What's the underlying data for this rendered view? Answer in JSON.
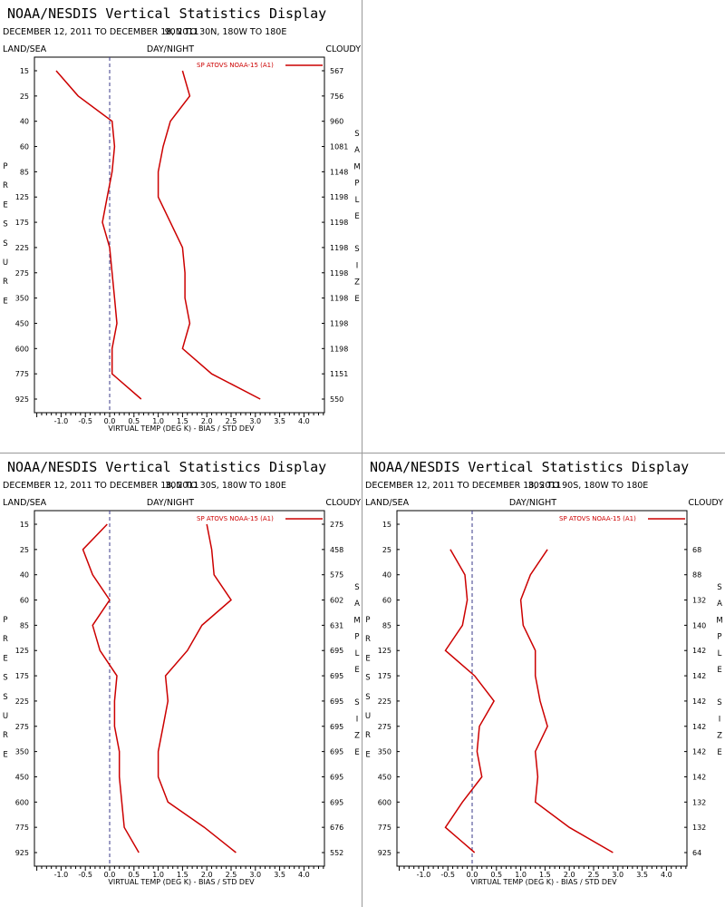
{
  "colors": {
    "bias": "#cc0000",
    "stddev": "#cc0000",
    "zero_line": "#3a3a88",
    "frame": "#000000"
  },
  "chart_data": [
    {
      "type": "line",
      "title": "NOAA/NESDIS Vertical Statistics Display",
      "date_range": "DECEMBER 12, 2011 TO DECEMBER 18, 2011",
      "region": "90N TO 30N, 180W TO 180E",
      "land_sea_label": "LAND/SEA",
      "day_night_label": "DAY/NIGHT",
      "cloudy_label": "CLOUDY",
      "ylabel": "PRESSURE",
      "y2label": "SAMPLE SIZE",
      "xlabel": "VIRTUAL TEMP (DEG K) - BIAS / STD DEV",
      "legend": "SP ATOVS NOAA-15 (A1)",
      "xlim": [
        -1.5,
        4.5
      ],
      "x_ticks": [
        "-1.0",
        "-0.5",
        "0.0",
        "0.5",
        "1.0",
        "1.5",
        "2.0",
        "2.5",
        "3.0",
        "3.5",
        "4.0"
      ],
      "pressure_levels": [
        "15",
        "25",
        "40",
        "60",
        "85",
        "125",
        "175",
        "225",
        "275",
        "350",
        "450",
        "600",
        "775",
        "925"
      ],
      "sample_size": [
        "567",
        "756",
        "960",
        "1081",
        "1148",
        "1198",
        "1198",
        "1198",
        "1198",
        "1198",
        "1198",
        "1198",
        "1151",
        "550"
      ],
      "series": [
        {
          "name": "",
          "values": [
            -1.1,
            -0.65,
            0.05,
            0.1,
            0.05,
            -0.05,
            -0.15,
            0.0,
            0.05,
            0.1,
            0.15,
            0.05,
            0.05,
            0.65
          ]
        },
        {
          "name": "",
          "values": [
            1.5,
            1.65,
            1.25,
            1.1,
            1.0,
            1.0,
            1.25,
            1.5,
            1.55,
            1.55,
            1.65,
            1.5,
            2.1,
            3.1
          ]
        }
      ]
    },
    {
      "type": "line",
      "title": "NOAA/NESDIS Vertical Statistics Display",
      "date_range": "DECEMBER 12, 2011 TO DECEMBER 18, 2011",
      "region": "30N TO 30S, 180W TO 180E",
      "land_sea_label": "LAND/SEA",
      "day_night_label": "DAY/NIGHT",
      "cloudy_label": "CLOUDY",
      "ylabel": "PRESSURE",
      "y2label": "SAMPLE SIZE",
      "xlabel": "VIRTUAL TEMP (DEG K) - BIAS / STD DEV",
      "legend": "SP ATOVS NOAA-15 (A1)",
      "xlim": [
        -1.5,
        4.5
      ],
      "x_ticks": [
        "-1.0",
        "-0.5",
        "0.0",
        "0.5",
        "1.0",
        "1.5",
        "2.0",
        "2.5",
        "3.0",
        "3.5",
        "4.0"
      ],
      "pressure_levels": [
        "15",
        "25",
        "40",
        "60",
        "85",
        "125",
        "175",
        "225",
        "275",
        "350",
        "450",
        "600",
        "775",
        "925"
      ],
      "sample_size": [
        "275",
        "458",
        "575",
        "602",
        "631",
        "695",
        "695",
        "695",
        "695",
        "695",
        "695",
        "695",
        "676",
        "552"
      ],
      "series": [
        {
          "name": "",
          "values": [
            -0.05,
            -0.55,
            -0.35,
            0.0,
            -0.35,
            -0.2,
            0.15,
            0.1,
            0.1,
            0.2,
            0.2,
            0.25,
            0.3,
            0.6
          ]
        },
        {
          "name": "",
          "values": [
            2.0,
            2.1,
            2.15,
            2.5,
            1.9,
            1.6,
            1.15,
            1.2,
            1.1,
            1.0,
            1.0,
            1.2,
            1.95,
            2.6
          ]
        }
      ]
    },
    {
      "type": "line",
      "title": "NOAA/NESDIS Vertical Statistics Display",
      "date_range": "DECEMBER 12, 2011 TO DECEMBER 18, 2011",
      "region": "30S TO 90S, 180W TO 180E",
      "land_sea_label": "LAND/SEA",
      "day_night_label": "DAY/NIGHT",
      "cloudy_label": "CLOUDY",
      "ylabel": "PRESSURE",
      "y2label": "SAMPLE SIZE",
      "xlabel": "VIRTUAL TEMP (DEG K) - BIAS / STD DEV",
      "legend": "SP ATOVS NOAA-15 (A1)",
      "xlim": [
        -1.5,
        4.5
      ],
      "x_ticks": [
        "-1.0",
        "-0.5",
        "0.0",
        "0.5",
        "1.0",
        "1.5",
        "2.0",
        "2.5",
        "3.0",
        "3.5",
        "4.0"
      ],
      "pressure_levels": [
        "15",
        "25",
        "40",
        "60",
        "85",
        "125",
        "175",
        "225",
        "275",
        "350",
        "450",
        "600",
        "775",
        "925"
      ],
      "sample_size": [
        "",
        "68",
        "88",
        "132",
        "140",
        "142",
        "142",
        "142",
        "142",
        "142",
        "142",
        "132",
        "132",
        "64"
      ],
      "series": [
        {
          "name": "",
          "values": [
            null,
            -0.45,
            -0.15,
            -0.1,
            -0.2,
            -0.55,
            0.05,
            0.45,
            0.15,
            0.1,
            0.2,
            -0.2,
            -0.55,
            0.05
          ]
        },
        {
          "name": "",
          "values": [
            null,
            1.55,
            1.2,
            1.0,
            1.05,
            1.3,
            1.3,
            1.4,
            1.55,
            1.3,
            1.35,
            1.3,
            2.0,
            2.9
          ]
        }
      ]
    }
  ]
}
